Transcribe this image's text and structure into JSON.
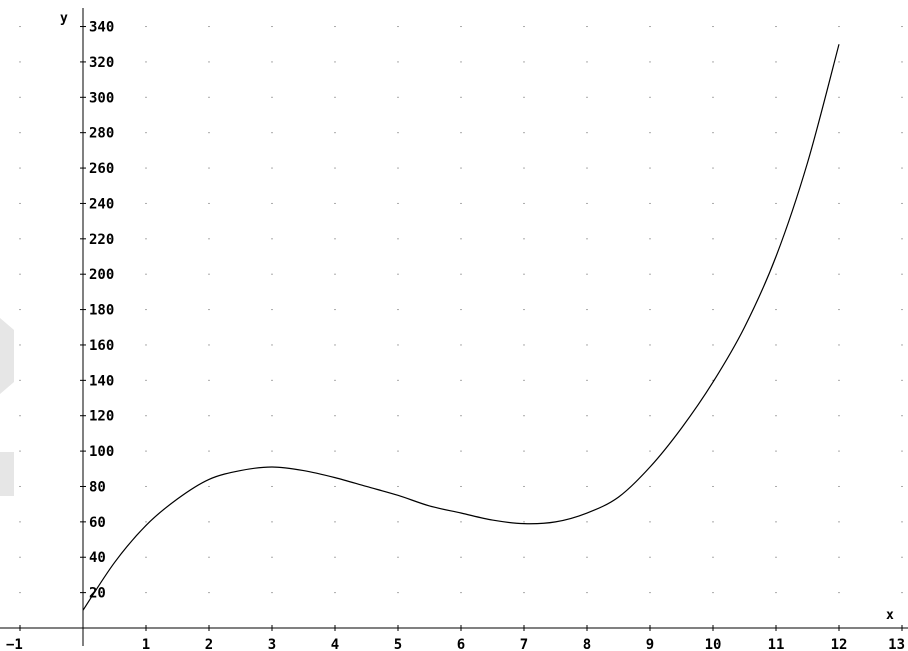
{
  "chart_data": {
    "type": "line",
    "xlabel": "x",
    "ylabel": "y",
    "xlim": [
      -1,
      13
    ],
    "ylim": [
      0,
      350
    ],
    "x_ticks": [
      -1,
      1,
      2,
      3,
      4,
      5,
      6,
      7,
      8,
      9,
      10,
      11,
      12,
      13
    ],
    "y_ticks": [
      20,
      40,
      60,
      80,
      100,
      120,
      140,
      160,
      180,
      200,
      220,
      240,
      260,
      280,
      300,
      320,
      340
    ],
    "grid": "dotted",
    "series": [
      {
        "x": [
          0,
          0.5,
          1,
          1.5,
          2,
          2.5,
          3,
          3.5,
          4,
          4.5,
          5,
          5.5,
          6,
          6.5,
          7,
          7.5,
          8,
          8.5,
          9,
          9.5,
          10,
          10.5,
          11,
          11.5,
          12
        ],
        "values": [
          10,
          37,
          58,
          73,
          84,
          89,
          91,
          89,
          85,
          80,
          75,
          69,
          65,
          61,
          59,
          60,
          65,
          74,
          91,
          113,
          139,
          170,
          210,
          263,
          330
        ]
      }
    ]
  }
}
